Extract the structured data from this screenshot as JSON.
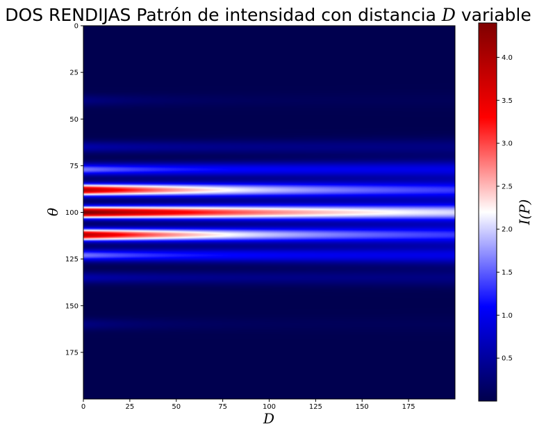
{
  "chart_data": {
    "type": "heatmap",
    "title": "DOS RENDIJAS Patrón de intensidad con distancia D variable",
    "title_parts": {
      "prefix": "DOS RENDIJAS Patrón de intensidad con distancia ",
      "italic": "D",
      "suffix": " variable"
    },
    "xlabel": "D",
    "ylabel": "θ",
    "colorbar_label": "I(P)",
    "colormap": "seismic",
    "colormap_stops": [
      "#00004c",
      "#0000ff",
      "#ffffff",
      "#ff0000",
      "#7f0000"
    ],
    "xlim": [
      0,
      200
    ],
    "ylim": [
      200,
      0
    ],
    "x_ticks": [
      0,
      25,
      50,
      75,
      100,
      125,
      150,
      175
    ],
    "x_tick_labels": [
      "0",
      "25",
      "50",
      "75",
      "100",
      "125",
      "150",
      "175"
    ],
    "y_ticks": [
      0,
      25,
      50,
      75,
      100,
      125,
      150,
      175
    ],
    "y_tick_labels": [
      "0",
      "25",
      "50",
      "75",
      "100",
      "125",
      "150",
      "175"
    ],
    "color_range": [
      0.0,
      4.4
    ],
    "colorbar_ticks": [
      0.5,
      1.0,
      1.5,
      2.0,
      2.5,
      3.0,
      3.5,
      4.0
    ],
    "colorbar_tick_labels": [
      "0.5",
      "1.0",
      "1.5",
      "2.0",
      "2.5",
      "3.0",
      "3.5",
      "4.0"
    ],
    "bands": [
      {
        "theta": 100,
        "peak_intensity": 4.4,
        "intensity_at_D_200": 1.45,
        "decay_D": 120
      },
      {
        "theta": 88,
        "peak_intensity": 3.9,
        "intensity_at_D_200": 1.05,
        "decay_D": 85
      },
      {
        "theta": 112,
        "peak_intensity": 3.9,
        "intensity_at_D_200": 1.05,
        "decay_D": 85
      },
      {
        "theta": 77,
        "peak_intensity": 1.6,
        "intensity_at_D_200": 0.9,
        "decay_D": 60
      },
      {
        "theta": 123,
        "peak_intensity": 1.6,
        "intensity_at_D_200": 0.9,
        "decay_D": 60
      },
      {
        "theta": 65,
        "peak_intensity": 0.55,
        "intensity_at_D_200": 0.3,
        "decay_D": 50
      },
      {
        "theta": 135,
        "peak_intensity": 0.55,
        "intensity_at_D_200": 0.3,
        "decay_D": 50
      },
      {
        "theta": 40,
        "peak_intensity": 0.3,
        "intensity_at_D_200": 0.05,
        "decay_D": 40
      },
      {
        "theta": 160,
        "peak_intensity": 0.3,
        "intensity_at_D_200": 0.05,
        "decay_D": 40
      }
    ],
    "background_intensity": 0.02
  }
}
